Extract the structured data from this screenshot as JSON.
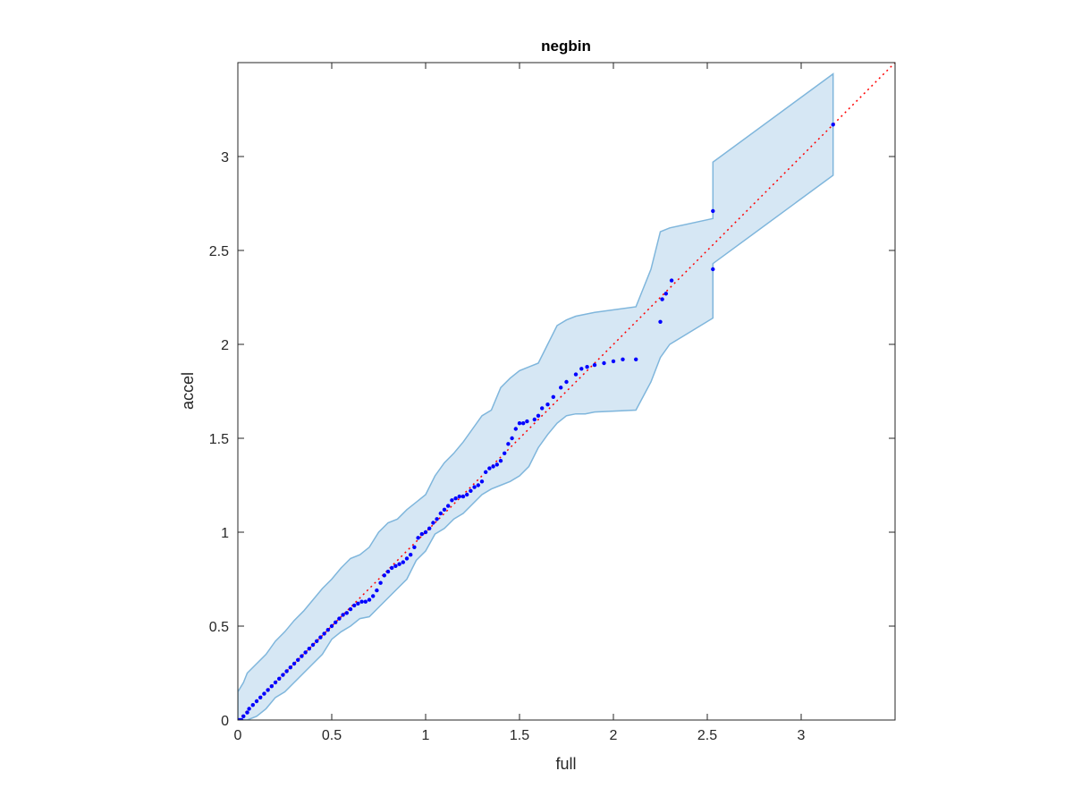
{
  "chart_data": {
    "type": "scatter",
    "title": "negbin",
    "xlabel": "full",
    "ylabel": "accel",
    "xlim": [
      0,
      3.5
    ],
    "ylim": [
      0,
      3.5
    ],
    "xticks": [
      0,
      0.5,
      1,
      1.5,
      2,
      2.5,
      3
    ],
    "yticks": [
      0,
      0.5,
      1,
      1.5,
      2,
      2.5,
      3
    ],
    "xtick_labels": [
      "0",
      "0.5",
      "1",
      "1.5",
      "2",
      "2.5",
      "3"
    ],
    "ytick_labels": [
      "0",
      "0.5",
      "1",
      "1.5",
      "2",
      "2.5",
      "3"
    ],
    "grid": false,
    "colors": {
      "points": "#0000ff",
      "reference_line": "#ff0000",
      "band_fill": "#d6e7f4",
      "band_edge": "#7fb6dc",
      "axes": "#262626"
    },
    "reference_line": {
      "style": "dotted",
      "x": [
        0,
        3.5
      ],
      "y": [
        0,
        3.5
      ]
    },
    "band": {
      "x": [
        0,
        0.03,
        0.05,
        0.1,
        0.15,
        0.2,
        0.25,
        0.3,
        0.35,
        0.4,
        0.45,
        0.5,
        0.55,
        0.6,
        0.65,
        0.7,
        0.75,
        0.8,
        0.85,
        0.9,
        0.95,
        1.0,
        1.05,
        1.1,
        1.15,
        1.2,
        1.25,
        1.3,
        1.35,
        1.4,
        1.45,
        1.5,
        1.55,
        1.6,
        1.65,
        1.7,
        1.75,
        1.8,
        1.85,
        1.9,
        2.12,
        2.2,
        2.25,
        2.3,
        2.53,
        2.53,
        3.17
      ],
      "upper": [
        0.15,
        0.2,
        0.25,
        0.3,
        0.35,
        0.42,
        0.47,
        0.53,
        0.58,
        0.64,
        0.7,
        0.75,
        0.81,
        0.86,
        0.88,
        0.92,
        1.0,
        1.05,
        1.07,
        1.12,
        1.16,
        1.2,
        1.3,
        1.37,
        1.42,
        1.48,
        1.55,
        1.62,
        1.65,
        1.77,
        1.82,
        1.86,
        1.88,
        1.9,
        2.0,
        2.1,
        2.13,
        2.15,
        2.16,
        2.17,
        2.2,
        2.4,
        2.6,
        2.62,
        2.67,
        2.97,
        3.44
      ],
      "lower": [
        0,
        0,
        0,
        0.02,
        0.06,
        0.12,
        0.15,
        0.2,
        0.25,
        0.3,
        0.35,
        0.43,
        0.47,
        0.5,
        0.54,
        0.55,
        0.6,
        0.65,
        0.7,
        0.75,
        0.85,
        0.9,
        0.99,
        1.02,
        1.07,
        1.1,
        1.15,
        1.2,
        1.23,
        1.25,
        1.27,
        1.3,
        1.35,
        1.45,
        1.52,
        1.58,
        1.62,
        1.63,
        1.63,
        1.64,
        1.65,
        1.8,
        1.93,
        2.0,
        2.14,
        2.43,
        2.9
      ]
    },
    "series": [
      {
        "x": [
          0.0,
          0.01,
          0.02,
          0.03,
          0.05,
          0.06,
          0.08,
          0.1,
          0.12,
          0.14,
          0.16,
          0.18,
          0.2,
          0.22,
          0.24,
          0.26,
          0.28,
          0.3,
          0.32,
          0.34,
          0.36,
          0.38,
          0.4,
          0.42,
          0.44,
          0.46,
          0.48,
          0.5,
          0.52,
          0.54,
          0.56,
          0.58,
          0.6,
          0.62,
          0.64,
          0.66,
          0.68,
          0.7,
          0.72,
          0.74,
          0.76,
          0.78,
          0.8,
          0.82,
          0.84,
          0.86,
          0.88,
          0.9,
          0.92,
          0.94,
          0.96,
          0.98,
          1.0,
          1.02,
          1.04,
          1.06,
          1.08,
          1.1,
          1.12,
          1.14,
          1.16,
          1.18,
          1.2,
          1.22,
          1.24,
          1.26,
          1.28,
          1.3,
          1.32,
          1.34,
          1.36,
          1.38,
          1.4,
          1.42,
          1.44,
          1.46,
          1.48,
          1.5,
          1.52,
          1.54,
          1.58,
          1.6,
          1.62,
          1.65,
          1.68,
          1.72,
          1.75,
          1.8,
          1.83,
          1.86,
          1.9,
          1.95,
          2.0,
          2.05,
          2.12,
          2.25,
          2.26,
          2.28,
          2.31,
          2.53,
          2.53,
          3.17
        ],
        "y": [
          0.0,
          0.0,
          0.0,
          0.02,
          0.04,
          0.06,
          0.08,
          0.1,
          0.12,
          0.14,
          0.16,
          0.18,
          0.2,
          0.22,
          0.24,
          0.26,
          0.28,
          0.3,
          0.32,
          0.34,
          0.36,
          0.38,
          0.4,
          0.42,
          0.44,
          0.46,
          0.48,
          0.5,
          0.52,
          0.54,
          0.56,
          0.57,
          0.59,
          0.61,
          0.62,
          0.63,
          0.63,
          0.64,
          0.66,
          0.69,
          0.73,
          0.77,
          0.79,
          0.81,
          0.82,
          0.83,
          0.84,
          0.86,
          0.88,
          0.92,
          0.97,
          0.99,
          1.0,
          1.02,
          1.05,
          1.07,
          1.1,
          1.12,
          1.14,
          1.17,
          1.18,
          1.19,
          1.19,
          1.2,
          1.22,
          1.24,
          1.25,
          1.27,
          1.32,
          1.34,
          1.35,
          1.36,
          1.38,
          1.42,
          1.47,
          1.5,
          1.55,
          1.58,
          1.58,
          1.59,
          1.6,
          1.62,
          1.66,
          1.68,
          1.72,
          1.77,
          1.8,
          1.84,
          1.87,
          1.88,
          1.89,
          1.9,
          1.91,
          1.92,
          1.92,
          2.12,
          2.24,
          2.27,
          2.34,
          2.4,
          2.71,
          3.17
        ]
      }
    ]
  }
}
